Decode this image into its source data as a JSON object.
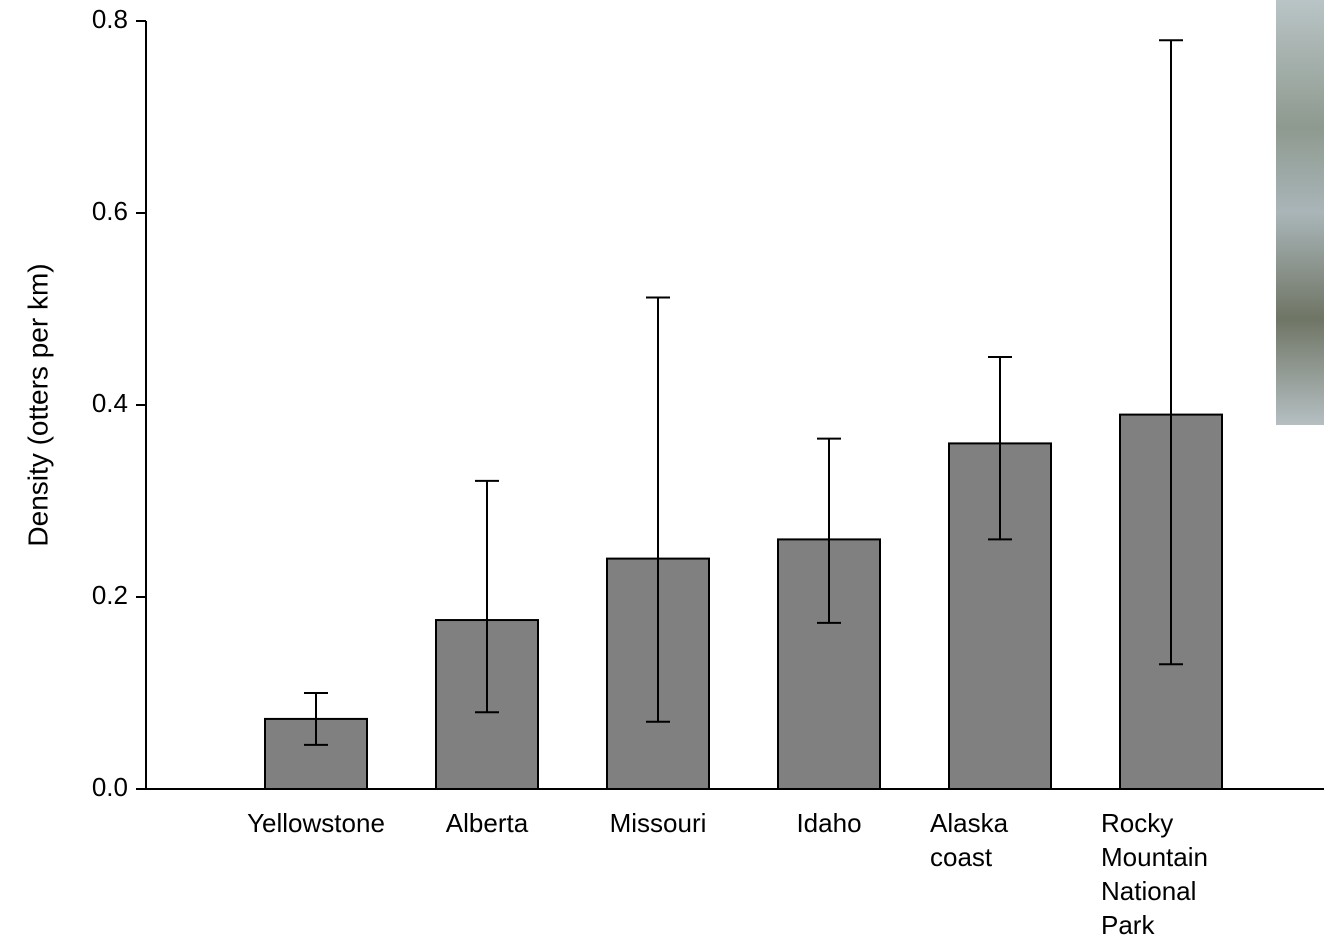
{
  "chart_data": {
    "type": "bar",
    "ylabel": "Density (otters per km)",
    "categories": [
      "Yellowstone",
      "Alberta",
      "Missouri",
      "Idaho",
      "Alaska coast",
      "Rocky Mountain National Park"
    ],
    "values": [
      0.073,
      0.176,
      0.24,
      0.26,
      0.36,
      0.39
    ],
    "error_low": [
      0.046,
      0.08,
      0.07,
      0.173,
      0.26,
      0.13
    ],
    "error_high": [
      0.1,
      0.321,
      0.512,
      0.365,
      0.45,
      0.78
    ],
    "color": "#808080",
    "ylim": [
      0,
      0.8
    ],
    "yticks": [
      {
        "value": 0,
        "label": "0.0"
      },
      {
        "value": 0.2,
        "label": "0.2"
      },
      {
        "value": 0.4,
        "label": "0.4"
      },
      {
        "value": 0.6,
        "label": "0.6"
      },
      {
        "value": 0.8,
        "label": "0.8"
      }
    ]
  }
}
